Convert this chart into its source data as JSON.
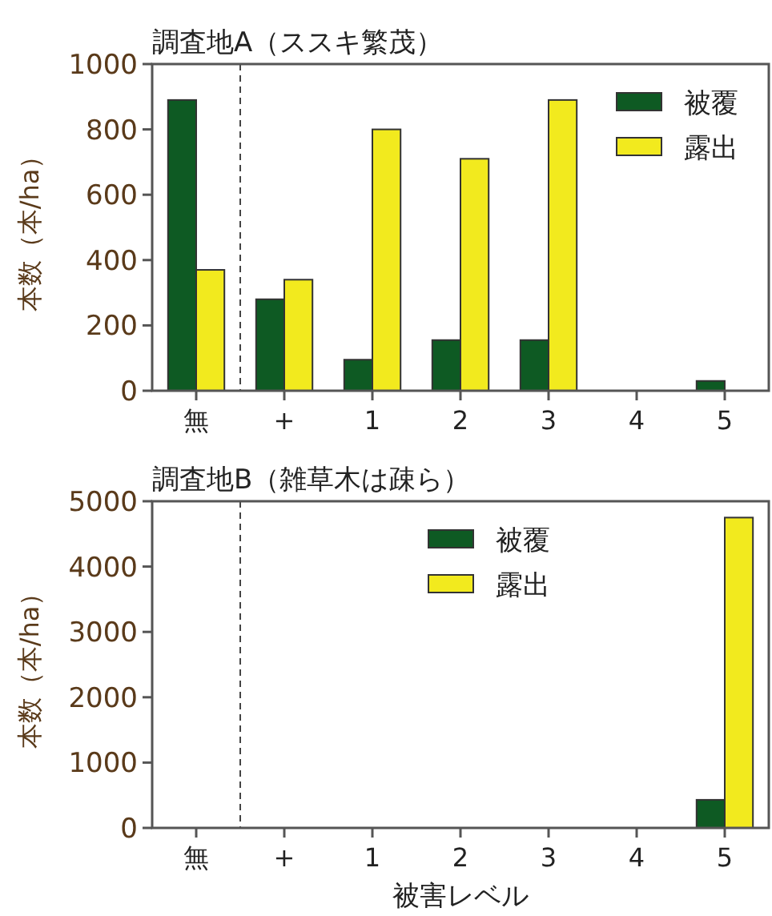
{
  "chart_data": [
    {
      "type": "bar",
      "title": "調査地A（ススキ繁茂）",
      "ylabel": "本数（本/ha）",
      "categories": [
        "無",
        "+",
        "1",
        "2",
        "3",
        "4",
        "5"
      ],
      "ylim": [
        0,
        1000
      ],
      "yticks": [
        0,
        200,
        400,
        600,
        800,
        1000
      ],
      "legend": "top right",
      "grid": false,
      "series": [
        {
          "name": "被覆",
          "color": "#0e5a23",
          "values": [
            890,
            280,
            95,
            155,
            155,
            0,
            30
          ]
        },
        {
          "name": "露出",
          "color": "#f2ea1e",
          "values": [
            370,
            340,
            800,
            710,
            890,
            0,
            0
          ]
        }
      ]
    },
    {
      "type": "bar",
      "title": "調査地B（雑草木は疎ら）",
      "ylabel": "本数（本/ha）",
      "xlabel": "被害レベル",
      "categories": [
        "無",
        "+",
        "1",
        "2",
        "3",
        "4",
        "5"
      ],
      "ylim": [
        0,
        5000
      ],
      "yticks": [
        0,
        1000,
        2000,
        3000,
        4000,
        5000
      ],
      "legend": "top",
      "grid": false,
      "series": [
        {
          "name": "被覆",
          "color": "#0e5a23",
          "values": [
            0,
            0,
            0,
            0,
            0,
            0,
            430
          ]
        },
        {
          "name": "露出",
          "color": "#f2ea1e",
          "values": [
            0,
            0,
            0,
            0,
            0,
            0,
            4750
          ]
        }
      ]
    }
  ]
}
